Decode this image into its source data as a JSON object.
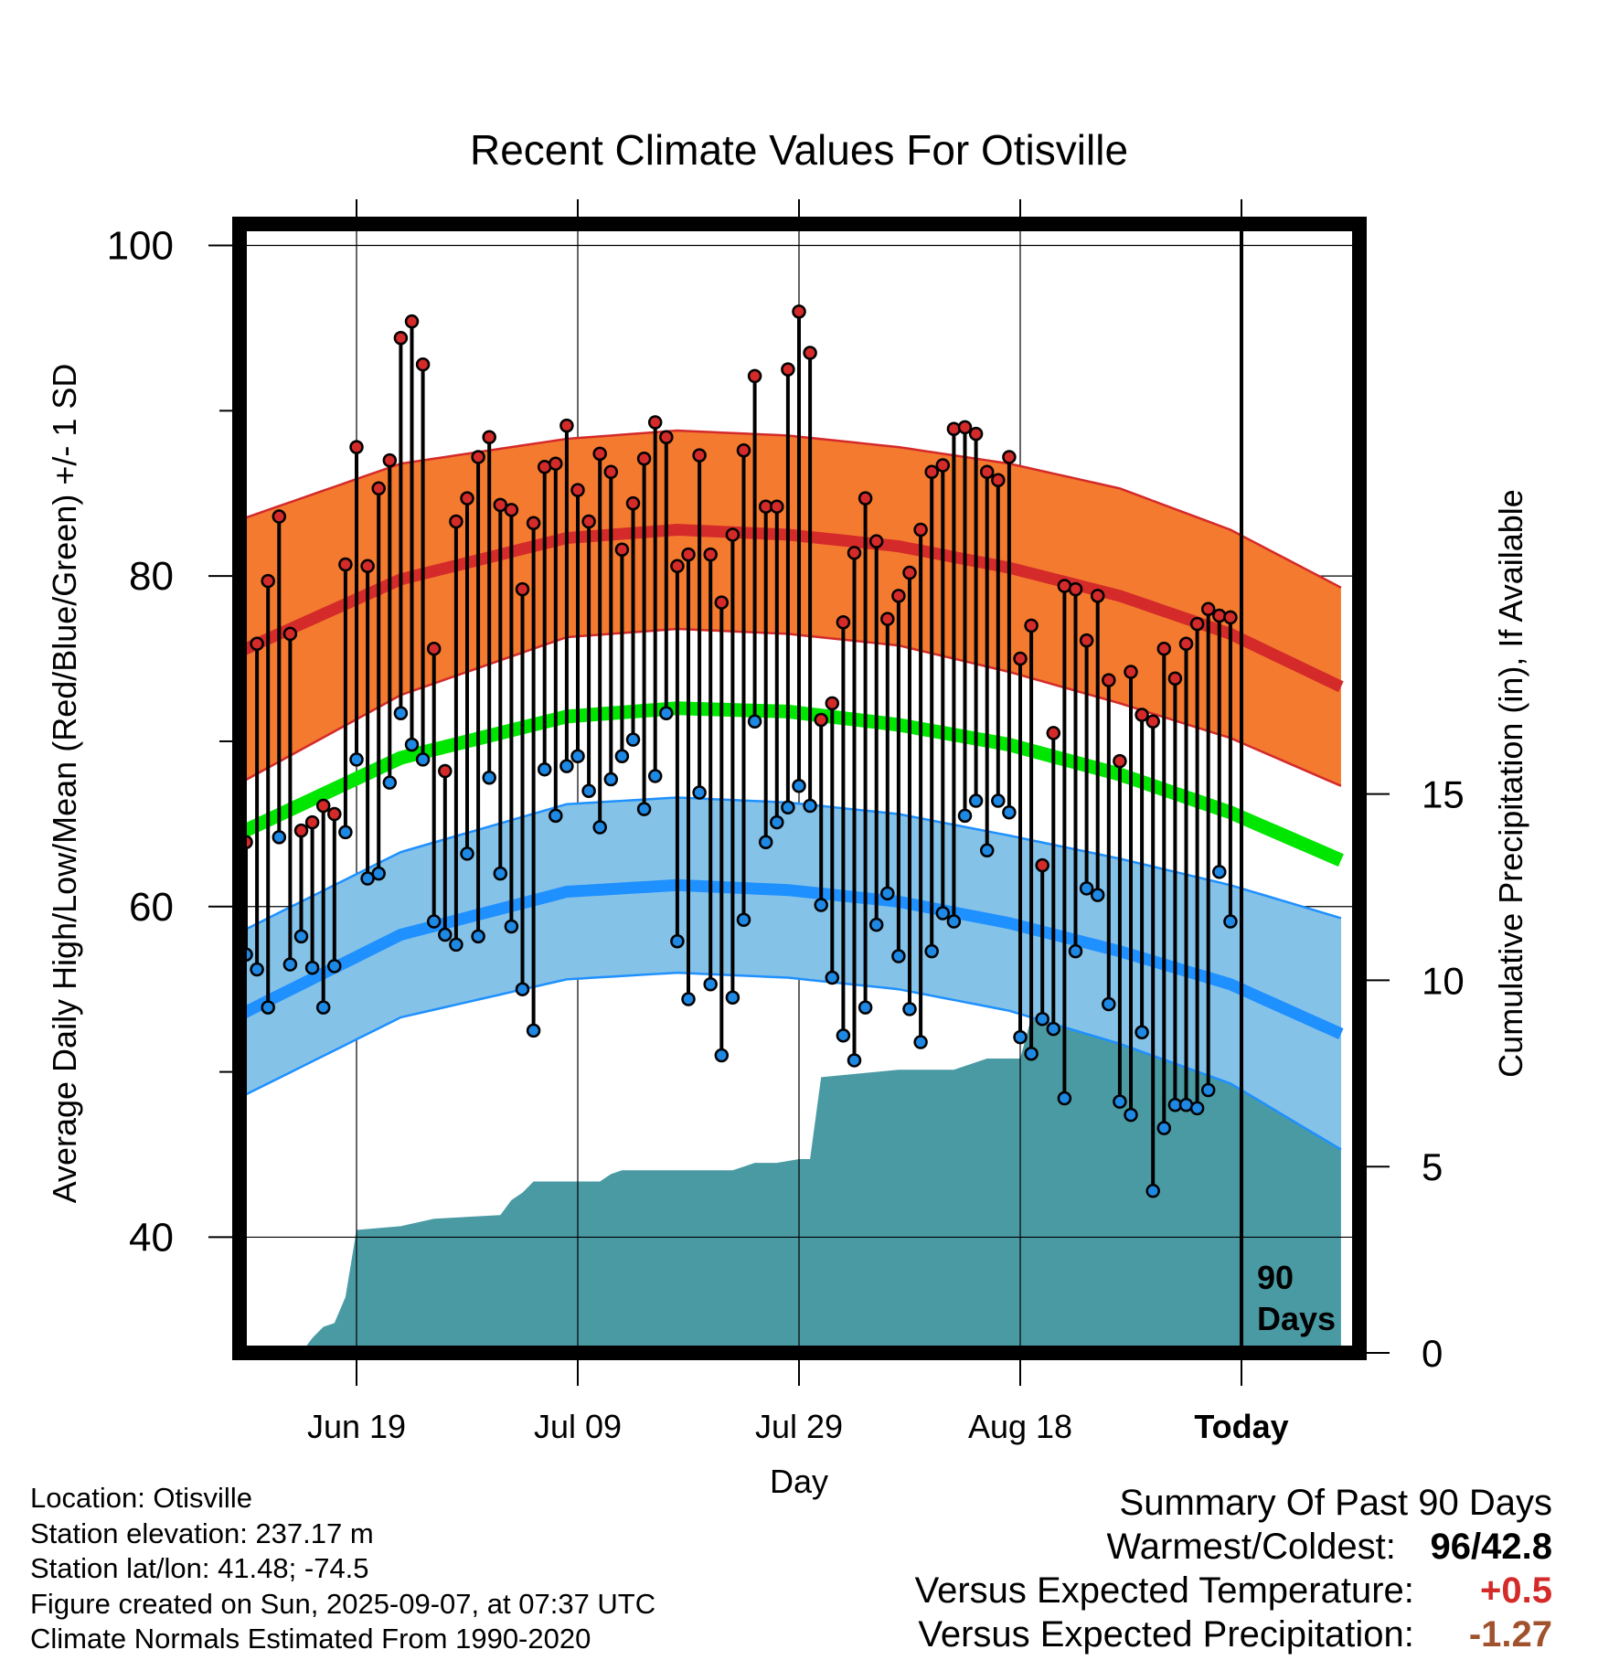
{
  "chart_data": {
    "type": "line",
    "title": "Recent Climate Values For Otisville",
    "xlabel": "Day",
    "ylabel": "Average Daily High/Low/Mean (Red/Blue/Green) +/- 1 SD",
    "y2label": "Cumulative Precipitation (in), If Available",
    "ylim": [
      33,
      101.3
    ],
    "y2lim": [
      0,
      30.3
    ],
    "yticks": [
      40,
      60,
      80,
      100
    ],
    "y2ticks": [
      0,
      5,
      10,
      15
    ],
    "xtick_labels": [
      "Jun 19",
      "Jul 09",
      "Jul 29",
      "Aug 18",
      "Today"
    ],
    "xtick_days": [
      11,
      31,
      51,
      71,
      91
    ],
    "window_label": "90 Days",
    "grid": true,
    "normal_high": {
      "x": [
        0,
        15,
        30,
        40,
        50,
        60,
        70,
        80,
        90,
        100
      ],
      "mean": [
        75.3,
        79.8,
        82.3,
        82.8,
        82.5,
        81.8,
        80.5,
        78.8,
        76.5,
        73.3
      ],
      "sd": [
        8.0,
        7.0,
        6.0,
        6.0,
        6.0,
        6.0,
        6.3,
        6.5,
        6.3,
        6.0
      ]
    },
    "normal_low": {
      "x": [
        0,
        15,
        30,
        40,
        50,
        60,
        70,
        80,
        90,
        100
      ],
      "mean": [
        53.3,
        58.3,
        60.9,
        61.3,
        61.0,
        60.3,
        59.0,
        57.3,
        55.3,
        52.3
      ],
      "sd": [
        5.0,
        5.0,
        5.3,
        5.3,
        5.3,
        5.3,
        5.3,
        5.6,
        6.0,
        7.0
      ]
    },
    "normal_mean": {
      "x": [
        0,
        15,
        30,
        40,
        50,
        60,
        70,
        80,
        90,
        100
      ],
      "values": [
        64.3,
        69.0,
        71.5,
        72.0,
        71.8,
        71.0,
        69.8,
        68.0,
        65.7,
        62.8
      ]
    },
    "days": [
      1,
      2,
      3,
      4,
      5,
      6,
      7,
      8,
      9,
      10,
      11,
      12,
      13,
      14,
      15,
      16,
      17,
      18,
      19,
      20,
      21,
      22,
      23,
      24,
      25,
      26,
      27,
      28,
      29,
      30,
      31,
      32,
      33,
      34,
      35,
      36,
      37,
      38,
      39,
      40,
      41,
      42,
      43,
      44,
      45,
      46,
      47,
      48,
      49,
      50,
      51,
      52,
      53,
      54,
      55,
      56,
      57,
      58,
      59,
      60,
      61,
      62,
      63,
      64,
      65,
      66,
      67,
      68,
      69,
      70,
      71,
      72,
      73,
      74,
      75,
      76,
      77,
      78,
      79,
      80,
      81,
      82,
      83,
      84,
      85,
      86,
      87,
      88,
      89,
      90
    ],
    "highs": [
      63.9,
      75.9,
      79.7,
      83.6,
      76.5,
      64.6,
      65.1,
      66.1,
      65.6,
      80.7,
      87.8,
      80.6,
      85.3,
      87.0,
      94.4,
      95.4,
      92.8,
      75.6,
      68.2,
      83.3,
      84.7,
      87.2,
      88.4,
      84.3,
      84.0,
      79.2,
      83.2,
      86.6,
      86.8,
      89.1,
      85.2,
      83.3,
      87.4,
      86.3,
      81.6,
      84.4,
      87.1,
      89.3,
      88.4,
      80.6,
      81.3,
      87.3,
      81.3,
      78.4,
      82.5,
      87.6,
      92.1,
      84.2,
      84.2,
      92.5,
      96.0,
      93.5,
      71.3,
      72.3,
      77.2,
      81.4,
      84.7,
      82.1,
      77.4,
      78.8,
      80.2,
      82.8,
      86.3,
      86.7,
      88.9,
      89.0,
      88.6,
      86.3,
      85.8,
      87.2,
      75.0,
      77.0,
      62.5,
      70.5,
      79.4,
      79.2,
      76.1,
      78.8,
      73.7,
      68.8,
      74.2,
      71.6,
      71.2,
      75.6,
      73.8,
      75.9,
      77.1,
      78.0,
      77.6,
      77.5
    ],
    "lows": [
      57.1,
      56.2,
      53.9,
      64.2,
      56.5,
      58.2,
      56.3,
      53.9,
      56.4,
      64.5,
      68.9,
      61.7,
      62.0,
      67.5,
      71.7,
      69.8,
      68.9,
      59.1,
      58.3,
      57.7,
      63.2,
      58.2,
      67.8,
      62.0,
      58.8,
      55.0,
      52.5,
      68.3,
      65.5,
      68.5,
      69.1,
      67.0,
      64.8,
      67.7,
      69.1,
      70.1,
      65.9,
      67.9,
      71.7,
      57.9,
      54.4,
      66.9,
      55.3,
      51.0,
      54.5,
      59.2,
      71.2,
      63.9,
      65.1,
      66.0,
      67.3,
      66.1,
      60.1,
      55.7,
      52.2,
      50.7,
      53.9,
      58.9,
      60.8,
      57.0,
      53.8,
      51.8,
      57.3,
      59.6,
      59.1,
      65.5,
      66.4,
      63.4,
      66.4,
      65.7,
      52.1,
      51.1,
      53.2,
      52.6,
      48.4,
      57.3,
      61.1,
      60.7,
      54.1,
      48.2,
      47.4,
      52.4,
      42.8,
      46.6,
      48.0,
      48.0,
      47.8,
      48.9,
      62.1,
      59.1
    ],
    "cumulative_precip": {
      "days": [
        6,
        7,
        8,
        9,
        10,
        11,
        15,
        18,
        24,
        25,
        26,
        27,
        33,
        34,
        35,
        45,
        46,
        47,
        49,
        51,
        52,
        53,
        60,
        63,
        65,
        68,
        71,
        72,
        73,
        74,
        77,
        82,
        83,
        86,
        87,
        88,
        90,
        100
      ],
      "values": [
        0,
        0.4,
        0.7,
        0.8,
        1.5,
        3.3,
        3.4,
        3.6,
        3.7,
        4.1,
        4.3,
        4.6,
        4.6,
        4.8,
        4.9,
        4.9,
        5.0,
        5.1,
        5.1,
        5.2,
        5.2,
        7.4,
        7.6,
        7.6,
        7.6,
        7.9,
        7.9,
        9.0,
        9.1,
        9.1,
        9.6,
        9.7,
        9.7,
        9.7,
        10.0,
        11.6,
        11.6,
        11.6
      ]
    },
    "colors": {
      "high_band": "#f47a2f",
      "high_line": "#d42a2a",
      "low_band": "#85c2e8",
      "low_line": "#1e90ff",
      "mean_line": "#00e600",
      "precip": "#4a9aa4",
      "high_dot": "#d42a2a",
      "low_dot": "#1e88e5"
    }
  },
  "info": {
    "location": "Location: Otisville",
    "elevation": "Station elevation: 237.17 m",
    "latlon": "Station lat/lon: 41.48; -74.5",
    "created": "Figure created on Sun, 2025-09-07, at 07:37 UTC",
    "normals": "Climate Normals Estimated From 1990-2020"
  },
  "summary": {
    "title": "Summary Of Past 90 Days",
    "warmest_label": "Warmest/Coldest:",
    "warmest_value": "96",
    "coldest_value": "42.8",
    "temp_label": "Versus Expected Temperature:",
    "temp_value": "+0.5",
    "temp_color": "#d42a2a",
    "precip_label": "Versus Expected Precipitation:",
    "precip_value": "-1.27",
    "precip_color": "#a0522d"
  }
}
